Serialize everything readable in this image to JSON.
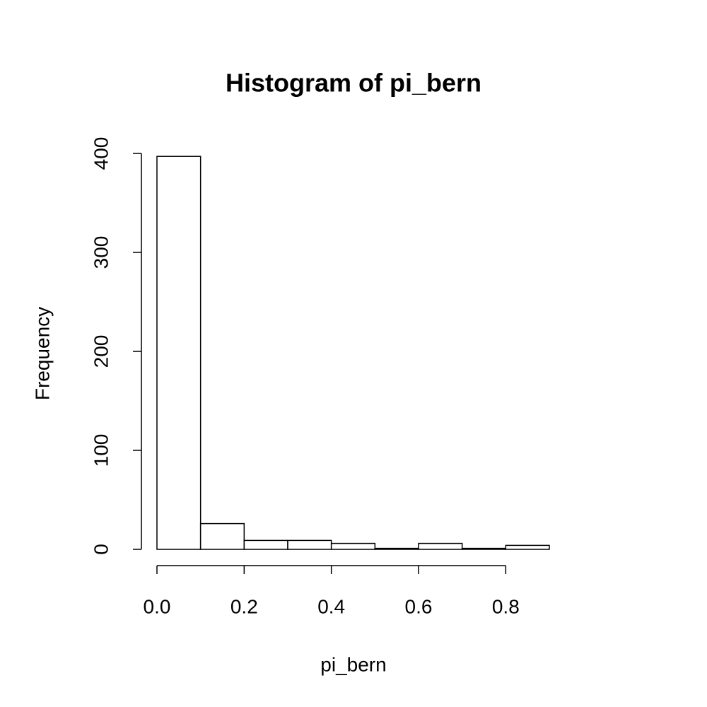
{
  "chart_data": {
    "type": "histogram",
    "title": "Histogram of pi_bern",
    "x_label": "pi_bern",
    "y_label": "Frequency",
    "bins": [
      0,
      0.1,
      0.2,
      0.3,
      0.4,
      0.5,
      0.6,
      0.7,
      0.8,
      0.9
    ],
    "values": [
      397,
      26,
      9,
      9,
      6,
      1,
      6,
      1,
      4
    ],
    "color": "#ffffff",
    "xlim": [
      0,
      0.9
    ],
    "xticks": [
      {
        "value": 0,
        "label": "0.0"
      },
      0.2,
      0.4,
      0.6,
      0.8
    ],
    "ylim": [
      0,
      400
    ],
    "yticks": [
      0,
      100,
      200,
      300,
      400
    ]
  }
}
